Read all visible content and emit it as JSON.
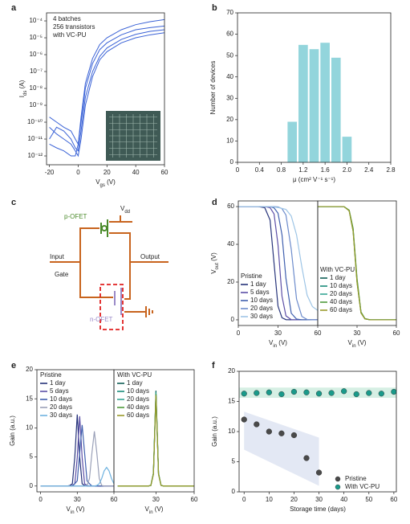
{
  "chart_data": [
    {
      "type": "line",
      "label": "a",
      "ylog": true,
      "x": [
        -20,
        -15,
        -10,
        -5,
        -2,
        0,
        2,
        5,
        10,
        15,
        20,
        30,
        40,
        50,
        60
      ],
      "series": [
        {
          "color": "#3a62d6",
          "values": [
            2e-10,
            1e-10,
            5e-11,
            3e-11,
            1e-11,
            5e-12,
            1e-10,
            1e-08,
            3e-07,
            2e-06,
            5e-06,
            1.5e-05,
            3e-05,
            4e-05,
            5e-05
          ]
        },
        {
          "color": "#3a62d6",
          "values": [
            1e-11,
            5e-11,
            3e-11,
            1e-11,
            3e-12,
            2e-12,
            3e-11,
            3e-09,
            1e-07,
            8e-07,
            2.5e-06,
            8e-06,
            1.6e-05,
            2.4e-05,
            3e-05
          ]
        },
        {
          "color": "#3a62d6",
          "values": [
            5e-12,
            3e-12,
            2e-12,
            1e-12,
            1e-12,
            5e-12,
            2e-10,
            2e-08,
            6e-07,
            4e-06,
            1e-05,
            3e-05,
            6e-05,
            9e-05,
            0.00012
          ]
        },
        {
          "color": "#3a62d6",
          "values": [
            5e-11,
            2e-11,
            1e-11,
            5e-12,
            2e-12,
            1e-12,
            1e-11,
            1e-09,
            5e-08,
            5e-07,
            1.5e-06,
            5e-06,
            1e-05,
            1.5e-05,
            2e-05
          ]
        }
      ],
      "xlim": [
        -22,
        60
      ],
      "xticks": [
        -20,
        0,
        20,
        40,
        60
      ],
      "ylim": [
        3e-13,
        0.0003
      ],
      "yticks": [
        {
          "value": 0.0001,
          "label": "10⁻⁴"
        },
        {
          "value": 1e-05,
          "label": "10⁻⁵"
        },
        {
          "value": 1e-06,
          "label": "10⁻⁶"
        },
        {
          "value": 1e-07,
          "label": "10⁻⁷"
        },
        {
          "value": 1e-08,
          "label": "10⁻⁸"
        },
        {
          "value": 1e-09,
          "label": "10⁻⁹"
        },
        {
          "value": 1e-10,
          "label": "10⁻¹⁰"
        },
        {
          "value": 1e-11,
          "label": "10⁻¹¹"
        },
        {
          "value": 1e-12,
          "label": "10⁻¹²"
        }
      ],
      "xlabel": [
        "V",
        "gs",
        " (V)"
      ],
      "ylabel": [
        "I",
        "ds",
        " (A)"
      ],
      "annotations": [
        "4 batches",
        "256 transistors",
        "with VC-PU"
      ]
    },
    {
      "type": "histogram",
      "label": "b",
      "bins": [
        0.9,
        1.1,
        1.3,
        1.5,
        1.7,
        1.9,
        2.1
      ],
      "values": [
        19,
        55,
        53,
        56,
        49,
        12
      ],
      "color": "#93d5dc",
      "xlim": [
        0,
        2.8
      ],
      "xticks": [
        0,
        0.4,
        0.8,
        1.2,
        1.6,
        {
          "value": 2,
          "label": "2.0"
        },
        2.4,
        2.8
      ],
      "ylim": [
        0,
        70
      ],
      "yticks": [
        0,
        10,
        20,
        30,
        40,
        50,
        60,
        70
      ],
      "xlabel": "μ (cm² V⁻¹ s⁻¹)",
      "ylabel": "Number of devices"
    },
    {
      "type": "line",
      "label": "d",
      "legend_title": "Pristine",
      "x": [
        0,
        15,
        20,
        24,
        27,
        30,
        33,
        36,
        40,
        44,
        48,
        52,
        56,
        60
      ],
      "series": [
        {
          "name": "1 day",
          "color": "#26337a",
          "values": [
            60,
            60,
            59.4,
            52.9,
            30,
            7.2,
            1.1,
            0.1,
            0,
            0,
            0,
            0,
            0,
            0
          ]
        },
        {
          "name": "5 days",
          "color": "#5b4ea6",
          "values": [
            60,
            60,
            60,
            59.4,
            56.1,
            39.7,
            12.5,
            2.1,
            0.1,
            0,
            0,
            0,
            0,
            0
          ]
        },
        {
          "name": "10 days",
          "color": "#3f5fae",
          "values": [
            60,
            60,
            60,
            60,
            59.3,
            56.5,
            45.1,
            21.9,
            3.5,
            0.4,
            0,
            0,
            0,
            0
          ]
        },
        {
          "name": "20 days",
          "color": "#6d8ccc",
          "values": [
            60,
            60,
            60,
            60,
            60,
            59.8,
            58.9,
            55.5,
            37.4,
            11,
            1.8,
            0.2,
            0,
            0
          ]
        },
        {
          "name": "30 days",
          "color": "#9ec5e6",
          "values": [
            60,
            60,
            60,
            60,
            59.8,
            59.5,
            59,
            58.5,
            55,
            45,
            28,
            13,
            7,
            5
          ]
        }
      ],
      "xlim": [
        0,
        60
      ],
      "xticks": [
        0,
        30,
        60
      ],
      "ylim": [
        -3,
        63
      ],
      "yticks": [
        0,
        20,
        40,
        60
      ],
      "xlabel": [
        "V",
        "in",
        " (V)"
      ],
      "ylabel": [
        "V",
        "out",
        " (V)"
      ]
    },
    {
      "type": "line",
      "legend_title": "With VC-PU",
      "x": [
        0,
        15,
        20,
        24,
        27,
        30,
        33,
        36,
        40,
        44,
        48,
        52,
        56,
        60
      ],
      "series": [
        {
          "name": "1 day",
          "color": "#0f5e55",
          "values": [
            60,
            60,
            60,
            57.9,
            47.5,
            20.3,
            3.9,
            0.6,
            0,
            0,
            0,
            0,
            0,
            0
          ]
        },
        {
          "name": "10 days",
          "color": "#178a7a",
          "values": [
            60,
            60,
            60,
            58,
            48,
            21,
            4,
            0.6,
            0,
            0,
            0,
            0,
            0,
            0
          ]
        },
        {
          "name": "20 days",
          "color": "#35a595",
          "values": [
            60,
            60,
            60,
            57.8,
            47,
            20,
            3.8,
            0.5,
            0,
            0,
            0,
            0,
            0,
            0
          ]
        },
        {
          "name": "40 days",
          "color": "#4f9a3a",
          "values": [
            60,
            60,
            60,
            58.1,
            48.5,
            22,
            4.2,
            0.7,
            0,
            0,
            0,
            0,
            0,
            0
          ]
        },
        {
          "name": "60 days",
          "color": "#9a9a2a",
          "values": [
            60,
            60,
            60,
            57.7,
            46.8,
            19.6,
            3.6,
            0.5,
            0,
            0,
            0,
            0,
            0,
            0
          ]
        }
      ],
      "xlim": [
        0,
        60
      ],
      "xticks": [
        30,
        60
      ],
      "ylim": [
        -3,
        63
      ],
      "xlabel": [
        "V",
        "in",
        " (V)"
      ]
    },
    {
      "type": "line",
      "label": "e",
      "legend_title": "Pristine",
      "x": [
        0,
        10,
        20,
        22,
        24,
        26,
        28,
        30,
        32,
        34,
        36,
        38,
        40,
        42,
        44,
        46,
        48,
        50,
        52,
        54,
        56,
        58,
        60
      ],
      "series": [
        {
          "name": "1 day",
          "color": "#26337a",
          "values": [
            0,
            0,
            0,
            0,
            0.1,
            0.4,
            5,
            12.3,
            5,
            0.4,
            0.1,
            0,
            0,
            0,
            0,
            0,
            0,
            0,
            0,
            0,
            0,
            0,
            0
          ]
        },
        {
          "name": "5 days",
          "color": "#5b4ea6",
          "values": [
            0,
            0,
            0,
            0,
            0,
            0.1,
            0.4,
            4.9,
            12,
            4.9,
            0.4,
            0.1,
            0,
            0,
            0,
            0,
            0,
            0,
            0,
            0,
            0,
            0,
            0
          ]
        },
        {
          "name": "10 days",
          "color": "#3f5fae",
          "values": [
            0,
            0,
            0,
            0,
            0,
            0,
            0.4,
            0.9,
            5.7,
            10.5,
            5.7,
            0.9,
            0.4,
            0,
            0,
            0,
            0,
            0,
            0,
            0,
            0,
            0,
            0
          ]
        },
        {
          "name": "20 days",
          "color": "#9aa0b8",
          "values": [
            0,
            0,
            0,
            0,
            0,
            0,
            0,
            0,
            0,
            0,
            0,
            0.1,
            1.3,
            5.7,
            9.4,
            5.7,
            1.3,
            0.1,
            0,
            0,
            0,
            0,
            0
          ]
        },
        {
          "name": "30 days",
          "color": "#6fb3e0",
          "values": [
            0,
            0,
            0,
            0,
            0,
            0,
            0,
            0,
            0,
            0,
            0,
            0,
            0,
            0,
            0,
            0.1,
            0.4,
            1.3,
            2.6,
            3.2,
            2.6,
            1.3,
            0.4
          ]
        }
      ],
      "xlim": [
        -3,
        60
      ],
      "xticks": [
        0,
        30,
        60
      ],
      "ylim": [
        -1,
        20
      ],
      "yticks": [
        0,
        5,
        10,
        15,
        20
      ],
      "xlabel": [
        "V",
        "in",
        " (V)"
      ],
      "ylabel": "Gain (a.u.)"
    },
    {
      "type": "line",
      "legend_title": "With VC-PU",
      "x": [
        0,
        10,
        20,
        22,
        24,
        26,
        28,
        30,
        32,
        34,
        36,
        38,
        40,
        42,
        44,
        46,
        48,
        50,
        52,
        54,
        56,
        58,
        60
      ],
      "series": [
        {
          "name": "1 day",
          "color": "#0f5e55",
          "values": [
            0,
            0,
            0,
            0,
            0,
            0.1,
            2.2,
            16.4,
            2.2,
            0.1,
            0,
            0,
            0,
            0,
            0,
            0,
            0,
            0,
            0,
            0,
            0,
            0,
            0
          ]
        },
        {
          "name": "10 days",
          "color": "#178a7a",
          "values": [
            0,
            0,
            0,
            0,
            0,
            0.1,
            2.2,
            16.2,
            2.2,
            0.1,
            0,
            0,
            0,
            0,
            0,
            0,
            0,
            0,
            0,
            0,
            0,
            0,
            0
          ]
        },
        {
          "name": "20 days",
          "color": "#35a595",
          "values": [
            0,
            0,
            0,
            0,
            0,
            0.1,
            2.1,
            16,
            2.1,
            0.1,
            0,
            0,
            0,
            0,
            0,
            0,
            0,
            0,
            0,
            0,
            0,
            0,
            0
          ]
        },
        {
          "name": "40 days",
          "color": "#4f9a3a",
          "values": [
            0,
            0,
            0,
            0,
            0,
            0.1,
            2.1,
            15.8,
            2.1,
            0.1,
            0,
            0,
            0,
            0,
            0,
            0,
            0,
            0,
            0,
            0,
            0,
            0,
            0
          ]
        },
        {
          "name": "60 days",
          "color": "#9a9a2a",
          "values": [
            0,
            0,
            0,
            0,
            0,
            0.1,
            2,
            15.6,
            2,
            0.1,
            0,
            0,
            0,
            0,
            0,
            0,
            0,
            0,
            0,
            0,
            0,
            0,
            0
          ]
        }
      ],
      "xlim": [
        -3,
        60
      ],
      "xticks": [
        30,
        60
      ],
      "ylim": [
        -1,
        20
      ],
      "xlabel": [
        "V",
        "in",
        " (V)"
      ]
    },
    {
      "type": "scatter",
      "label": "f",
      "series": [
        {
          "name": "Pristine",
          "color": "#4a4a4a",
          "x": [
            0,
            5,
            10,
            15,
            20,
            25,
            30
          ],
          "values": [
            12,
            11.2,
            10,
            9.7,
            9.4,
            5.6,
            3.2
          ]
        },
        {
          "name": "With VC-PU",
          "color": "#1a9a8a",
          "x": [
            0,
            5,
            10,
            15,
            20,
            25,
            30,
            35,
            40,
            45,
            50,
            55,
            60
          ],
          "values": [
            16.3,
            16.4,
            16.5,
            16.2,
            16.6,
            16.5,
            16.3,
            16.4,
            16.7,
            16.2,
            16.4,
            16.3,
            16.6
          ]
        }
      ],
      "xlim": [
        -2,
        61
      ],
      "xticks": [
        0,
        10,
        20,
        30,
        40,
        50,
        60
      ],
      "ylim": [
        0,
        20
      ],
      "yticks": [
        0,
        5,
        10,
        15,
        20
      ],
      "xlabel": "Storage time (days)",
      "ylabel": "Gain (a.u.)"
    }
  ],
  "circuit": {
    "label": "c",
    "p_ofet": "p-OFET",
    "vdd": [
      "V",
      "dd"
    ],
    "input": "Input",
    "gate": "Gate",
    "output": "Output",
    "n_ofet": "n-OFET"
  }
}
